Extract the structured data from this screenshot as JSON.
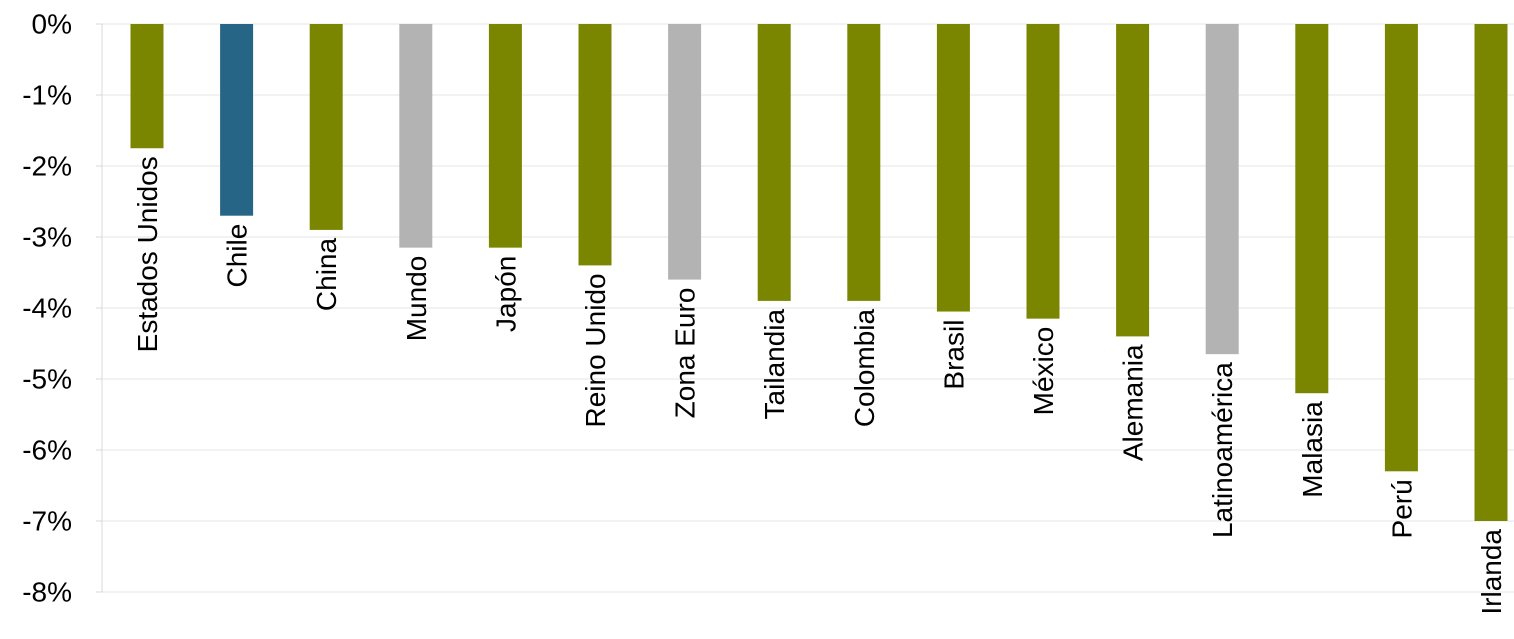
{
  "chart_data": {
    "type": "bar",
    "categories": [
      "Estados Unidos",
      "Chile",
      "China",
      "Mundo",
      "Japón",
      "Reino Unido",
      "Zona Euro",
      "Tailandia",
      "Colombia",
      "Brasil",
      "México",
      "Alemania",
      "Latinoamérica",
      "Malasia",
      "Perú",
      "Irlanda"
    ],
    "values": [
      -1.75,
      -2.7,
      -2.9,
      -3.15,
      -3.15,
      -3.4,
      -3.6,
      -3.9,
      -3.9,
      -4.05,
      -4.15,
      -4.4,
      -4.65,
      -5.2,
      -6.3,
      -7.0
    ],
    "colors": [
      "#7a8500",
      "#276587",
      "#7a8500",
      "#b3b3b3",
      "#7a8500",
      "#7a8500",
      "#b3b3b3",
      "#7a8500",
      "#7a8500",
      "#7a8500",
      "#7a8500",
      "#7a8500",
      "#b3b3b3",
      "#7a8500",
      "#7a8500",
      "#7a8500"
    ],
    "ylim": [
      -8,
      0
    ],
    "yticks": [
      "0%",
      "-1%",
      "-2%",
      "-3%",
      "-4%",
      "-5%",
      "-6%",
      "-7%",
      "-8%"
    ],
    "grid": true,
    "title": "",
    "xlabel": "",
    "ylabel": ""
  }
}
